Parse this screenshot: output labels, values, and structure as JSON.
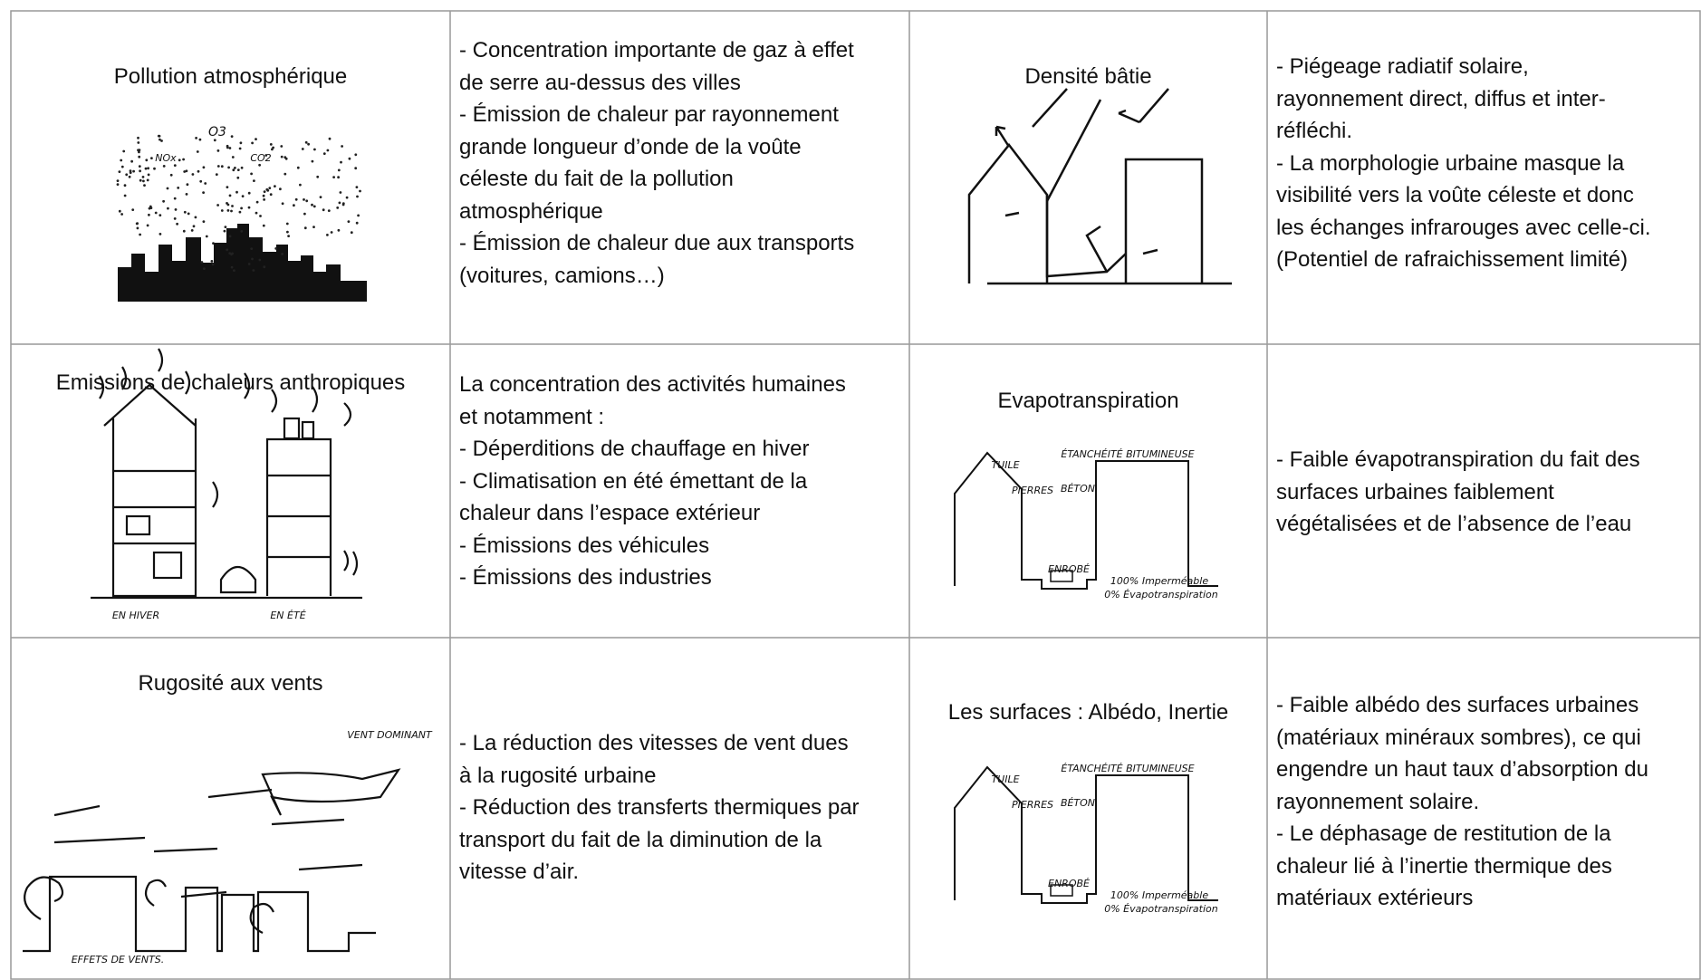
{
  "table": {
    "rows": [
      {
        "cells": [
          {
            "title": "Pollution atmosphérique",
            "sketch_labels": [
              "O3",
              "NOx",
              "CO2"
            ]
          },
          {
            "lines": [
              "- Concentration importante de gaz à effet",
              "de serre au-dessus des villes",
              "- Émission de chaleur par rayonnement",
              "grande longueur d’onde de la voûte",
              "céleste du fait de la pollution",
              "atmosphérique",
              "- Émission de chaleur due aux transports",
              "(voitures, camions…)"
            ]
          },
          {
            "title": "Densité bâtie",
            "sketch_labels": []
          },
          {
            "lines": [
              "- Piégeage radiatif solaire,",
              "rayonnement direct, diffus et inter-",
              "réfléchi.",
              "- La morphologie urbaine masque la",
              "visibilité vers la voûte céleste et donc",
              "les échanges infrarouges avec celle-ci.",
              "(Potentiel de rafraichissement limité)"
            ]
          }
        ]
      },
      {
        "cells": [
          {
            "title": "Emissions de chaleurs anthropiques",
            "sketch_labels": [
              "EN HIVER",
              "EN ÉTÉ"
            ]
          },
          {
            "lines": [
              "La concentration des activités humaines",
              "et notamment :",
              "- Déperditions de chauffage en hiver",
              "- Climatisation en été émettant de la",
              "chaleur dans l’espace extérieur",
              "- Émissions des véhicules",
              "- Émissions des industries"
            ]
          },
          {
            "title": "Evapotranspiration",
            "sketch_labels": [
              "TUILE",
              "ÉTANCHÉITÉ BITUMINEUSE",
              "PIERRES",
              "BÉTON",
              "ENROBÉ",
              "100% Imperméable",
              "0% Évapotranspiration"
            ]
          },
          {
            "lines": [
              "- Faible évapotranspiration du fait des",
              "surfaces urbaines faiblement",
              "végétalisées et de l’absence de l’eau"
            ]
          }
        ]
      },
      {
        "cells": [
          {
            "title": "Rugosité aux vents",
            "sketch_labels": [
              "VENT DOMINANT",
              "EFFETS DE VENTS."
            ]
          },
          {
            "lines": [
              "- La réduction des vitesses de vent dues",
              "à la rugosité urbaine",
              "- Réduction des transferts thermiques par",
              "transport du fait de la diminution de la",
              "vitesse d’air."
            ]
          },
          {
            "title": "Les surfaces : Albédo, Inertie",
            "sketch_labels": [
              "TUILE",
              "ÉTANCHÉITÉ BITUMINEUSE",
              "PIERRES",
              "BÉTON",
              "ENROBÉ",
              "100% Imperméable",
              "0% Évapotranspiration"
            ]
          },
          {
            "lines": [
              "- Faible albédo des surfaces urbaines",
              "(matériaux minéraux sombres), ce qui",
              "engendre un haut taux d’absorption du",
              "rayonnement solaire.",
              "- Le déphasage de restitution de la",
              "chaleur lié à l’inertie thermique des",
              "matériaux extérieurs"
            ]
          }
        ]
      }
    ]
  }
}
